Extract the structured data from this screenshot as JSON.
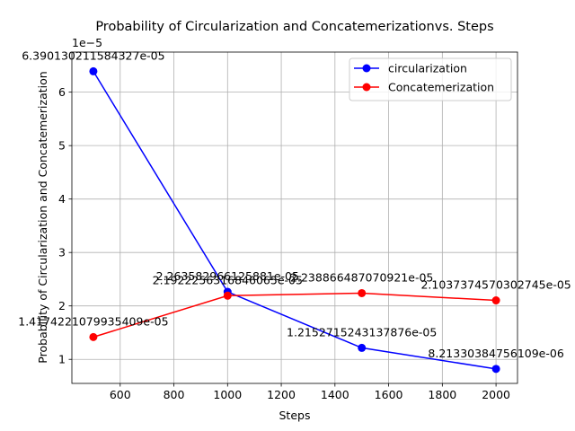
{
  "chart_data": {
    "type": "line",
    "title": "Probability of Circularization and Concatemerizationvs. Steps",
    "xlabel": "Steps",
    "ylabel": "Probability of Circularization and Concatemerization",
    "y_scale_label": "1e−5",
    "xlim": [
      420,
      2080
    ],
    "ylim": [
      5.5e-06,
      6.75e-05
    ],
    "x_ticks": [
      600,
      800,
      1000,
      1200,
      1400,
      1600,
      1800,
      2000
    ],
    "y_ticks": [
      1e-05,
      2e-05,
      3e-05,
      4e-05,
      5e-05,
      6e-05
    ],
    "x_tick_labels": [
      "600",
      "800",
      "1000",
      "1200",
      "1400",
      "1600",
      "1800",
      "2000"
    ],
    "y_tick_labels": [
      "1",
      "2",
      "3",
      "4",
      "5",
      "6"
    ],
    "grid": true,
    "legend_position": "top-right",
    "series": [
      {
        "name": "circularization",
        "color": "#0000ff",
        "x": [
          500,
          1000,
          1500,
          2000
        ],
        "values": [
          6.390130211584327e-05,
          2.263582966125881e-05,
          1.2152715243137876e-05,
          8.21330384756109e-06
        ],
        "labels": [
          "6.390130211584327e-05",
          "2.263582966125881e-05",
          "1.2152715243137876e-05",
          "8.21330384756109e-06"
        ]
      },
      {
        "name": "Concatemerization",
        "color": "#ff0000",
        "x": [
          500,
          1000,
          1500,
          2000
        ],
        "values": [
          1.4174221079935409e-05,
          2.1922256316846065e-05,
          2.238866487070921e-05,
          2.1037374570302745e-05
        ],
        "labels": [
          "1.4174221079935409e-05",
          "2.1922256316846065e-05",
          "2.238866487070921e-05",
          "2.1037374570302745e-05"
        ]
      }
    ]
  }
}
